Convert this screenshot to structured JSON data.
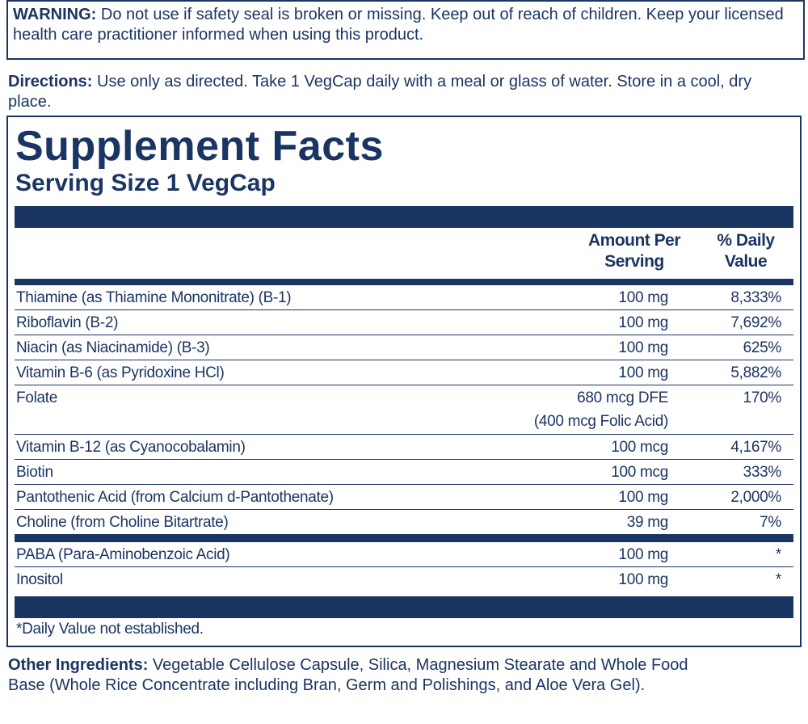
{
  "warning": {
    "label": "WARNING:",
    "text": "Do not use if safety seal is broken or missing. Keep out of reach of children. Keep your licensed health care practitioner informed when using this product."
  },
  "directions": {
    "label": "Directions:",
    "text": "Use only as directed. Take 1 VegCap daily with a meal or glass of water. Store in a cool, dry place."
  },
  "facts": {
    "title": "Supplement Facts",
    "serving": "Serving Size 1 VegCap",
    "headers": [
      "Amount Per Serving",
      "% Daily Value"
    ],
    "sections": [
      [
        {
          "name": "Thiamine (as Thiamine Mononitrate) (B-1)",
          "amount": "100 mg",
          "dv": "8,333%"
        },
        {
          "name": "Riboflavin (B-2)",
          "amount": "100 mg",
          "dv": "7,692%"
        },
        {
          "name": "Niacin (as Niacinamide) (B-3)",
          "amount": "100 mg",
          "dv": "625%"
        },
        {
          "name": "Vitamin B-6 (as Pyridoxine HCl)",
          "amount": "100 mg",
          "dv": "5,882%"
        },
        {
          "name": "Folate",
          "amount": "680 mcg DFE",
          "amount_detail": "(400 mcg Folic Acid)",
          "dv": "170%"
        },
        {
          "name": "Vitamin B-12 (as Cyanocobalamin)",
          "amount": "100 mcg",
          "dv": "4,167%"
        },
        {
          "name": "Biotin",
          "amount": "100 mcg",
          "dv": "333%"
        },
        {
          "name": "Pantothenic Acid (from Calcium d-Pantothenate)",
          "amount": "100 mg",
          "dv": "2,000%"
        },
        {
          "name": "Choline (from Choline Bitartrate)",
          "amount": "39 mg",
          "dv": "7%"
        }
      ],
      [
        {
          "name": "PABA (Para-Aminobenzoic Acid)",
          "amount": "100 mg",
          "dv": "*"
        },
        {
          "name": "Inositol",
          "amount": "100 mg",
          "dv": "*"
        }
      ]
    ],
    "footnote": "*Daily Value not established."
  },
  "other": {
    "label": "Other Ingredients:",
    "text": "Vegetable Cellulose Capsule, Silica, Magnesium Stearate and Whole Food Base (Whole Rice Concentrate including Bran, Germ and Polishings, and Aloe Vera Gel)."
  }
}
